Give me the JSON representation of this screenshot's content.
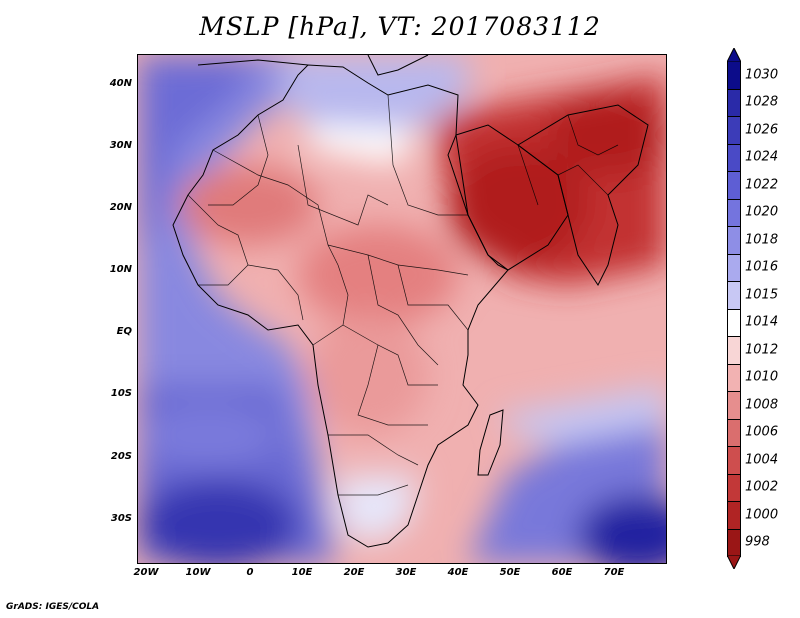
{
  "title": "MSLP [hPa], VT: 2017083112",
  "credit": "GrADS: IGES/COLA",
  "map": {
    "region": "Africa, Middle East and South Asia",
    "lon_range": [
      -22,
      80
    ],
    "lat_range": [
      -37,
      45
    ],
    "lat_ticks": [
      {
        "lat": 40,
        "label": "40N"
      },
      {
        "lat": 30,
        "label": "30N"
      },
      {
        "lat": 20,
        "label": "20N"
      },
      {
        "lat": 10,
        "label": "10N"
      },
      {
        "lat": 0,
        "label": "EQ"
      },
      {
        "lat": -10,
        "label": "10S"
      },
      {
        "lat": -20,
        "label": "20S"
      },
      {
        "lat": -30,
        "label": "30S"
      }
    ],
    "lon_ticks": [
      {
        "lon": -20,
        "label": "20W"
      },
      {
        "lon": -10,
        "label": "10W"
      },
      {
        "lon": 0,
        "label": "0"
      },
      {
        "lon": 10,
        "label": "10E"
      },
      {
        "lon": 20,
        "label": "20E"
      },
      {
        "lon": 30,
        "label": "30E"
      },
      {
        "lon": 40,
        "label": "40E"
      },
      {
        "lon": 50,
        "label": "50E"
      },
      {
        "lon": 60,
        "label": "60E"
      },
      {
        "lon": 70,
        "label": "70E"
      }
    ]
  },
  "colorbar": {
    "labels": [
      "1030",
      "1028",
      "1026",
      "1024",
      "1022",
      "1020",
      "1018",
      "1016",
      "1015",
      "1014",
      "1012",
      "1010",
      "1008",
      "1006",
      "1004",
      "1002",
      "1000",
      "998"
    ],
    "colors": [
      "#0c0c8a",
      "#2a2aa8",
      "#3c3cb8",
      "#4a4ac6",
      "#5e5ed4",
      "#7474de",
      "#8e8ee6",
      "#aaaaee",
      "#c8c8f4",
      "#ffffff",
      "#f8d6d6",
      "#f2b2b2",
      "#e68e8e",
      "#da6e6e",
      "#ce4e4e",
      "#c23838",
      "#b02424",
      "#9a1616"
    ]
  }
}
